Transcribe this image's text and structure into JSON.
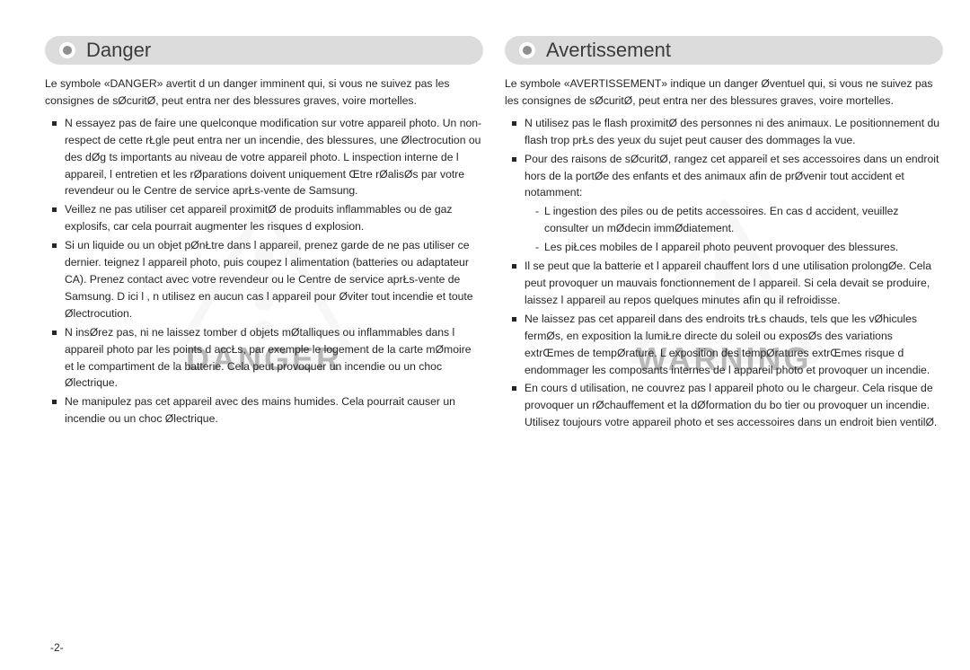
{
  "page_number": "-2-",
  "colors": {
    "header_bg": "#dcdcdc",
    "header_text": "#3b3b3b",
    "body_text": "#262626",
    "watermark": "#b9b9b9",
    "page_bg": "#ffffff"
  },
  "left": {
    "title": "Danger",
    "watermark_text": "DANGER",
    "intro": "Le symbole «DANGER» avertit d un danger imminent qui, si vous ne suivez pas les consignes de sØcuritØ, peut entra ner des blessures graves, voire mortelles.",
    "bullets": [
      "N essayez pas de faire une quelconque modification sur votre appareil photo. Un non-respect de cette rŁgle peut entra ner un incendie, des blessures, une Ølectrocution ou des dØg ts importants au niveau de votre appareil photo. L inspection interne de l appareil, l entretien et les rØparations doivent uniquement Œtre rØalisØs par votre revendeur ou le Centre de service aprŁs-vente de Samsung.",
      "Veillez   ne pas utiliser cet appareil   proximitØ de produits inflammables ou de gaz explosifs, car cela pourrait augmenter les risques d explosion.",
      "Si un liquide ou un objet pØnŁtre dans l appareil, prenez garde de ne pas utiliser ce dernier.  teignez l appareil photo, puis coupez l alimentation (batteries ou adaptateur CA). Prenez contact avec votre revendeur ou le Centre de service aprŁs-vente de Samsung. D ici l , n utilisez en aucun cas l appareil pour Øviter tout incendie et toute Ølectrocution.",
      "N insØrez pas, ni ne laissez  tomber d objets mØtalliques ou inflammables dans l appareil photo par les points d accŁs, par exemple le logement de la carte mØmoire et le compartiment de la batterie. Cela peut provoquer un incendie ou un choc Ølectrique.",
      "Ne manipulez pas cet appareil avec des mains humides. Cela pourrait causer un incendie ou un choc Ølectrique."
    ]
  },
  "right": {
    "title": "Avertissement",
    "watermark_text": "WARNING",
    "intro": "Le symbole «AVERTISSEMENT» indique un danger Øventuel qui, si vous ne suivez pas les consignes de sØcuritØ, peut entra ner des blessures graves, voire mortelles.",
    "bullets": [
      {
        "text": "N utilisez pas le flash   proximitØ des personnes ni des animaux. Le positionnement du flash trop prŁs des yeux du sujet peut causer des dommages   la vue."
      },
      {
        "text": "Pour des raisons de sØcuritØ, rangez cet appareil et ses accessoires dans un endroit hors de la portØe des enfants et des animaux afin de prØvenir tout accident et notamment:",
        "sub": [
          "L ingestion des piles ou de petits accessoires. En cas d accident, veuillez consulter un mØdecin immØdiatement.",
          "Les piŁces mobiles de l appareil photo peuvent provoquer des blessures."
        ]
      },
      {
        "text": "Il se peut que la batterie et l appareil chauffent lors d une utilisation prolongØe. Cela peut provoquer un mauvais fonctionnement de l appareil. Si cela devait se produire, laissez l appareil au repos quelques minutes afin qu il refroidisse."
      },
      {
        "text": "Ne laissez pas cet appareil dans des endroits trŁs chauds, tels que les vØhicules fermØs, en exposition   la lumiŁre directe du soleil ou exposØs   des variations extrŒmes de tempØrature. L exposition   des tempØratures extrŒmes risque d endommager les composants internes de l appareil photo et provoquer un incendie."
      },
      {
        "text": "En cours d utilisation, ne couvrez pas l appareil photo ou le chargeur. Cela risque de provoquer un rØchauffement et la dØformation du bo tier ou provoquer un incendie. Utilisez toujours votre appareil photo et ses accessoires dans un endroit bien ventilØ."
      }
    ]
  }
}
